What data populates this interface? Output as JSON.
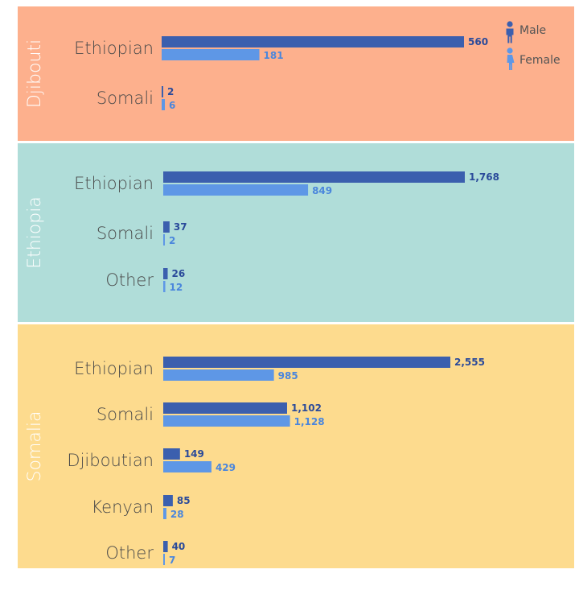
{
  "colors": {
    "male": "#3b5fae",
    "female": "#5e97e6",
    "male_text": "#2a4a9a",
    "female_text": "#4a86dc"
  },
  "legend": [
    {
      "label": "Male",
      "icon": "male-person-icon"
    },
    {
      "label": "Female",
      "icon": "female-person-icon"
    }
  ],
  "chart_data": {
    "type": "bar",
    "orientation": "horizontal",
    "series_names": [
      "Male",
      "Female"
    ],
    "panels": [
      {
        "title": "Djibouti",
        "background": "#fdb08d",
        "categories": [
          "Ethiopian",
          "Somali"
        ],
        "male": [
          560,
          2
        ],
        "female": [
          181,
          6
        ],
        "male_labels": [
          "560",
          "2"
        ],
        "female_labels": [
          "181",
          "6"
        ]
      },
      {
        "title": "Ethiopia",
        "background": "#b0ddd9",
        "categories": [
          "Ethiopian",
          "Somali",
          "Other"
        ],
        "male": [
          1768,
          37,
          26
        ],
        "female": [
          849,
          2,
          12
        ],
        "male_labels": [
          "1,768",
          "37",
          "26"
        ],
        "female_labels": [
          "849",
          "2",
          "12"
        ]
      },
      {
        "title": "Somalia",
        "background": "#fddb8e",
        "categories": [
          "Ethiopian",
          "Somali",
          "Djiboutian",
          "Kenyan",
          "Other"
        ],
        "male": [
          2555,
          1102,
          149,
          85,
          40
        ],
        "female": [
          985,
          1128,
          429,
          28,
          7
        ],
        "male_labels": [
          "2,555",
          "1,102",
          "149",
          "85",
          "40"
        ],
        "female_labels": [
          "985",
          "1,128",
          "429",
          "28",
          "7"
        ]
      }
    ]
  }
}
